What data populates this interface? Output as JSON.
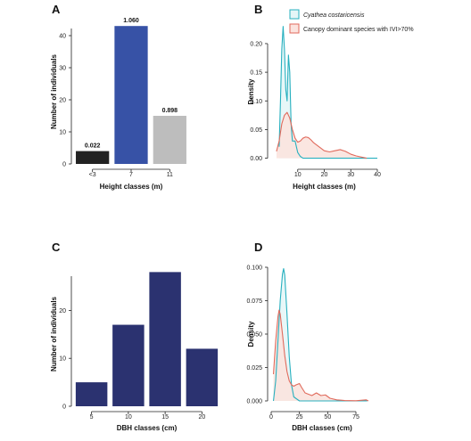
{
  "chart_data": [
    {
      "id": "A",
      "panel_label": "A",
      "type": "bar",
      "categories": [
        "<3",
        "7",
        "11"
      ],
      "values": [
        4,
        43,
        15
      ],
      "bar_labels": [
        "0.022",
        "1.060",
        "0.898"
      ],
      "bar_colors": [
        "#222222",
        "#3752a6",
        "#bdbdbd"
      ],
      "xlabel": "Height classes (m)",
      "ylabel": "Number of individuals",
      "ylim": [
        0,
        45
      ],
      "yticks": [
        0,
        10,
        20,
        30,
        40
      ]
    },
    {
      "id": "B",
      "panel_label": "B",
      "type": "area",
      "xlabel": "Height classes (m)",
      "ylabel": "Density",
      "xlim": [
        0,
        40
      ],
      "ylim": [
        -0.01,
        0.245
      ],
      "xticks": [
        10,
        20,
        30,
        40
      ],
      "yticks": [
        "0.00",
        "0.05",
        "0.10",
        "0.15",
        "0.20"
      ],
      "ytick_values": [
        0,
        0.05,
        0.1,
        0.15,
        0.2
      ],
      "legend_position": "top",
      "series": [
        {
          "name": "Cyathea costaricensis",
          "color": "#27b0bf",
          "fill": "#e5f6f7",
          "x": [
            3.0,
            3.5,
            4.0,
            4.5,
            5.0,
            5.5,
            6.0,
            6.5,
            7.0,
            7.5,
            8.0,
            9.0,
            10.0,
            11.0,
            12.0,
            14.0,
            20.0,
            30.0,
            40.0
          ],
          "y": [
            0.02,
            0.1,
            0.19,
            0.23,
            0.19,
            0.12,
            0.1,
            0.18,
            0.15,
            0.06,
            0.03,
            0.03,
            0.01,
            0.003,
            0.0,
            0.0,
            0.0,
            0.0,
            0.0
          ]
        },
        {
          "name": "Canopy dominant species with IVI>70%",
          "color": "#e06a5c",
          "fill": "#fbe3de",
          "x": [
            2,
            3,
            4,
            5,
            6,
            7,
            8,
            9,
            10,
            11,
            12,
            13,
            14,
            15,
            16,
            18,
            20,
            22,
            24,
            26,
            28,
            30,
            32,
            34,
            36
          ],
          "y": [
            0.012,
            0.03,
            0.06,
            0.075,
            0.08,
            0.07,
            0.05,
            0.035,
            0.028,
            0.03,
            0.035,
            0.037,
            0.036,
            0.032,
            0.027,
            0.02,
            0.013,
            0.011,
            0.013,
            0.015,
            0.012,
            0.007,
            0.004,
            0.002,
            0.0
          ]
        }
      ]
    },
    {
      "id": "C",
      "panel_label": "C",
      "type": "bar",
      "categories": [
        "5",
        "10",
        "15",
        "20"
      ],
      "values": [
        5,
        17,
        28,
        12
      ],
      "bar_colors": [
        "#2b3270",
        "#2b3270",
        "#2b3270",
        "#2b3270"
      ],
      "xlabel": "DBH classes (cm)",
      "ylabel": "Number of individuals",
      "ylim": [
        0,
        29
      ],
      "yticks": [
        0,
        10,
        20
      ]
    },
    {
      "id": "D",
      "panel_label": "D",
      "type": "area",
      "xlabel": "DBH classes (cm)",
      "ylabel": "Density",
      "xlim": [
        0,
        90
      ],
      "ylim": [
        -0.004,
        0.104
      ],
      "xticks": [
        0,
        25,
        50,
        75
      ],
      "yticks": [
        "0.000",
        "0.025",
        "0.050",
        "0.075",
        "0.100"
      ],
      "ytick_values": [
        0,
        0.025,
        0.05,
        0.075,
        0.1
      ],
      "series": [
        {
          "name": "Cyathea costaricensis",
          "color": "#27b0bf",
          "fill": "#e5f6f7",
          "x": [
            2,
            4,
            6,
            8,
            10,
            11,
            12,
            14,
            16,
            18,
            20,
            25,
            30,
            40,
            50,
            60,
            70,
            80,
            85
          ],
          "y": [
            0.0,
            0.015,
            0.045,
            0.075,
            0.095,
            0.099,
            0.094,
            0.065,
            0.033,
            0.012,
            0.003,
            0.0,
            0.0,
            0.0,
            0.0,
            0.0,
            0.0,
            0.0,
            0.0
          ]
        },
        {
          "name": "Canopy dominant species with IVI>70%",
          "color": "#e06a5c",
          "fill": "#fbe3de",
          "x": [
            2,
            4,
            6,
            7,
            8,
            10,
            12,
            14,
            16,
            18,
            20,
            22,
            25,
            27,
            30,
            33,
            36,
            40,
            44,
            48,
            52,
            58,
            65,
            75,
            84,
            86
          ],
          "y": [
            0.02,
            0.045,
            0.063,
            0.068,
            0.065,
            0.05,
            0.034,
            0.022,
            0.015,
            0.012,
            0.011,
            0.012,
            0.013,
            0.01,
            0.006,
            0.005,
            0.004,
            0.006,
            0.004,
            0.0045,
            0.002,
            0.0008,
            0.0003,
            0.0001,
            0.0008,
            0.0
          ]
        }
      ]
    }
  ]
}
